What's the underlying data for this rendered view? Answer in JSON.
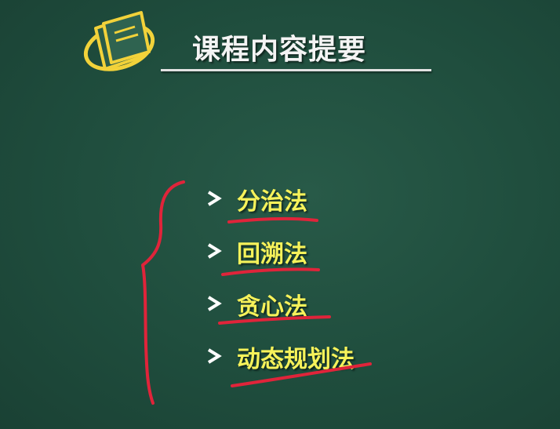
{
  "slide": {
    "title": "课程内容提要",
    "topics": [
      {
        "label": "分治法"
      },
      {
        "label": "回溯法"
      },
      {
        "label": "贪心法"
      },
      {
        "label": "动态规划法"
      }
    ]
  },
  "colors": {
    "board": "#1f4d3d",
    "title_text": "#f4f4f4",
    "topic_text": "#f6f25a",
    "bullet": "#ffffff",
    "annotation": "#e0243a",
    "logo": "#f2d23a"
  },
  "icons": {
    "logo": "document-stack-icon",
    "bullet": "chevron-right-icon"
  }
}
